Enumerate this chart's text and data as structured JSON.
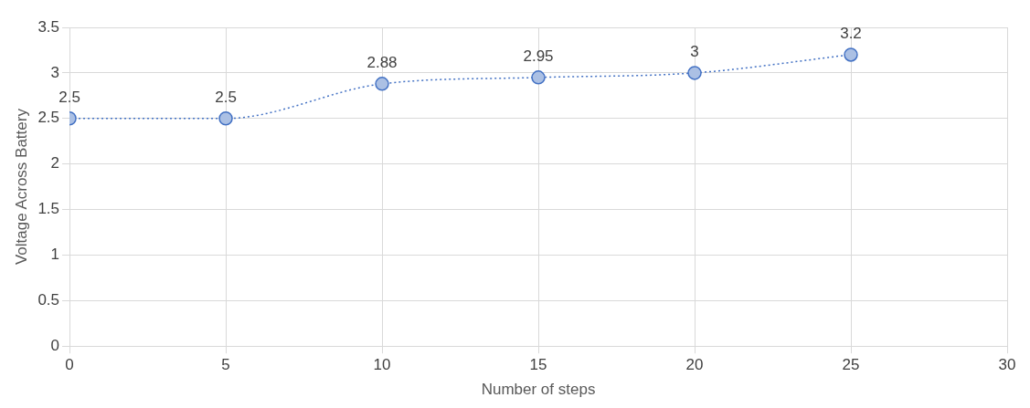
{
  "chart_data": {
    "type": "line",
    "xlabel": "Number of steps",
    "ylabel": "Voltage Across Battery",
    "x": [
      0,
      5,
      10,
      15,
      20,
      25
    ],
    "series": [
      {
        "color": "#4472c4",
        "values": [
          2.5,
          2.5,
          2.88,
          2.95,
          3,
          3.2
        ]
      }
    ],
    "xlim": [
      0,
      30
    ],
    "xticks": [
      0,
      5,
      10,
      15,
      20,
      25,
      30
    ],
    "ylim": [
      0,
      3.5
    ],
    "yticks": [
      0,
      0.5,
      1,
      1.5,
      2,
      2.5,
      3,
      3.5
    ],
    "grid": true,
    "legend": false,
    "marker": "circle",
    "line_style": "dotted",
    "data_labels": true
  }
}
